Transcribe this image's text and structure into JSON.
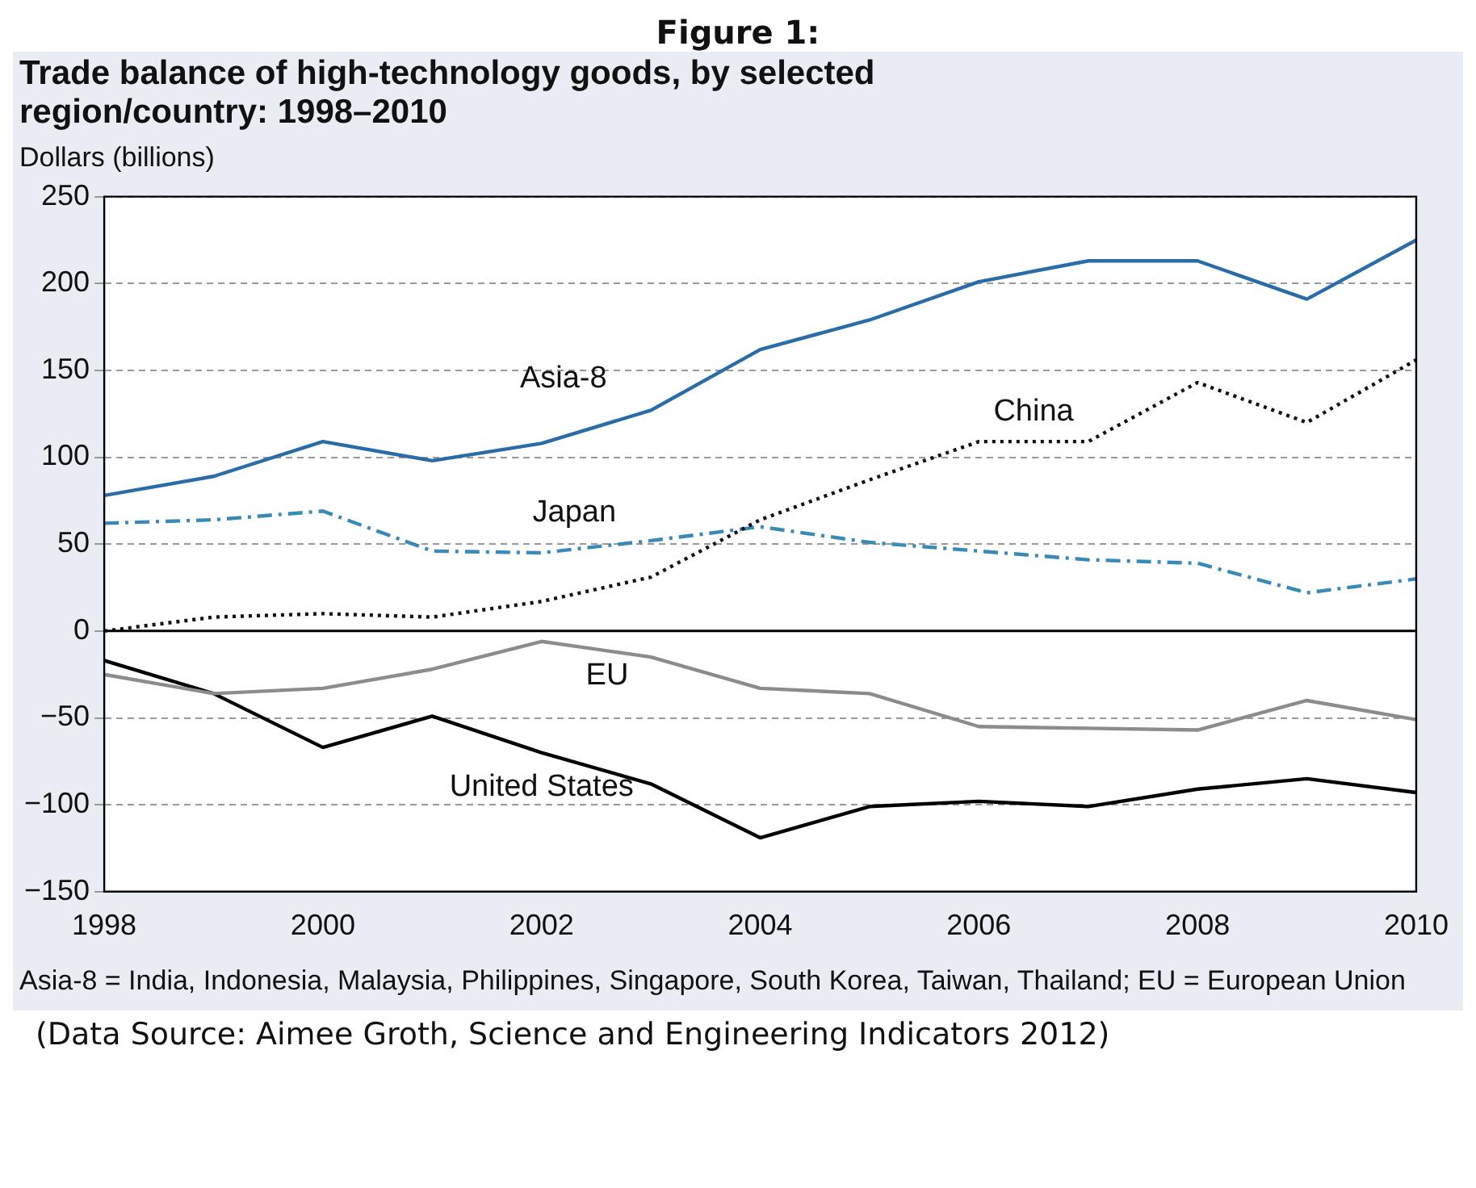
{
  "chart_data": {
    "type": "line",
    "title": "Trade balance of high-technology goods, by selected region/country: 1998–2010",
    "ylabel": "Dollars (billions)",
    "annotations": [
      "Figure 1:",
      "Asia-8 = India, Indonesia, Malaysia, Philippines, Singapore, South Korea, Taiwan, Thailand; EU = European Union",
      "(Data Source: Aimee Groth, Science and Engineering Indicators 2012)"
    ],
    "x": [
      1998,
      1999,
      2000,
      2001,
      2002,
      2003,
      2004,
      2005,
      2006,
      2007,
      2008,
      2009,
      2010
    ],
    "xlim": [
      1998,
      2010
    ],
    "xticks": [
      1998,
      2000,
      2002,
      2004,
      2006,
      2008,
      2010
    ],
    "ylim": [
      -150,
      250
    ],
    "yticks": [
      -150,
      -100,
      -50,
      0,
      50,
      100,
      150,
      200,
      250
    ],
    "grid": "y",
    "marker": "none",
    "ref_lines": [
      {
        "axis": "y",
        "value": 0,
        "color": "#000000"
      }
    ],
    "series": [
      {
        "name": "Asia-8",
        "color": "#2a6ca8",
        "line_style": "solid",
        "values": [
          78,
          89,
          109,
          98,
          108,
          127,
          162,
          179,
          201,
          213,
          213,
          191,
          225
        ]
      },
      {
        "name": "China",
        "color": "#111111",
        "line_style": "dotted",
        "values": [
          0,
          8,
          10,
          8,
          17,
          31,
          64,
          87,
          109,
          109,
          143,
          120,
          156
        ]
      },
      {
        "name": "Japan",
        "color": "#3a8ab8",
        "line_style": "dashed",
        "values": [
          62,
          64,
          69,
          46,
          45,
          52,
          60,
          51,
          46,
          41,
          39,
          22,
          30
        ]
      },
      {
        "name": "EU",
        "color": "#8c8c8c",
        "line_style": "solid",
        "values": [
          -25,
          -36,
          -33,
          -22,
          -6,
          -15,
          -33,
          -36,
          -55,
          -56,
          -57,
          -40,
          -51
        ]
      },
      {
        "name": "United States",
        "color": "#000000",
        "line_style": "solid",
        "values": [
          -17,
          -36,
          -67,
          -49,
          -70,
          -88,
          -119,
          -101,
          -98,
          -101,
          -91,
          -85,
          -93
        ]
      }
    ]
  }
}
